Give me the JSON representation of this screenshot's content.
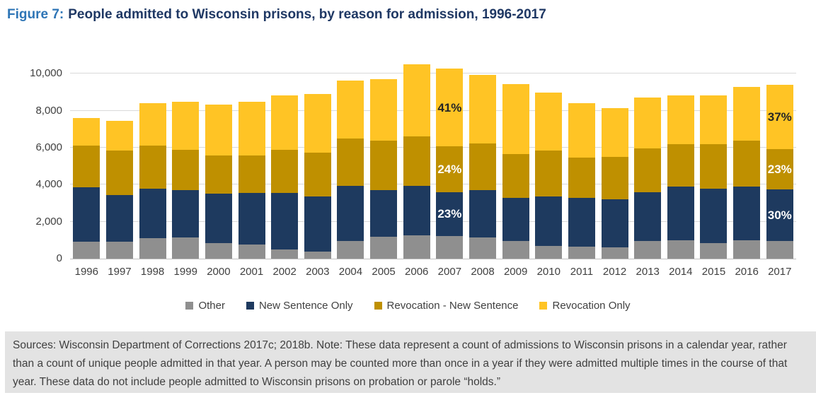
{
  "figure": {
    "label": "Figure 7:",
    "title": "People admitted to Wisconsin prisons, by reason for admission, 1996-2017"
  },
  "chart_data": {
    "type": "bar",
    "stacked": true,
    "title": "People admitted to Wisconsin prisons, by reason for admission, 1996-2017",
    "xlabel": "",
    "ylabel": "",
    "ylim": [
      0,
      10000
    ],
    "yticks": [
      0,
      2000,
      4000,
      6000,
      8000,
      10000
    ],
    "grid": true,
    "legend_position": "bottom",
    "categories": [
      "1996",
      "1997",
      "1998",
      "1999",
      "2000",
      "2001",
      "2002",
      "2003",
      "2004",
      "2005",
      "2006",
      "2007",
      "2008",
      "2009",
      "2010",
      "2011",
      "2012",
      "2013",
      "2014",
      "2015",
      "2016",
      "2017"
    ],
    "series": [
      {
        "name": "Other",
        "color": "#8F8F8F",
        "values": [
          900,
          900,
          1100,
          1150,
          850,
          750,
          500,
          400,
          950,
          1200,
          1250,
          1230,
          1150,
          950,
          700,
          650,
          600,
          950,
          1000,
          850,
          1000,
          940
        ]
      },
      {
        "name": "New Sentence Only",
        "color": "#1E3A5F",
        "values": [
          2950,
          2550,
          2700,
          2550,
          2650,
          2800,
          3050,
          2950,
          3000,
          2500,
          2700,
          2370,
          2550,
          2350,
          2650,
          2650,
          2600,
          2650,
          2900,
          2950,
          2900,
          2820
        ]
      },
      {
        "name": "Revocation - New Sentence",
        "color": "#BF9000",
        "values": [
          2250,
          2400,
          2300,
          2200,
          2100,
          2050,
          2350,
          2400,
          2550,
          2700,
          2650,
          2460,
          2550,
          2350,
          2500,
          2150,
          2300,
          2350,
          2300,
          2400,
          2500,
          2160
        ]
      },
      {
        "name": "Revocation Only",
        "color": "#FFC425",
        "values": [
          1500,
          1600,
          2300,
          2600,
          2750,
          2900,
          2950,
          3150,
          3150,
          3300,
          3900,
          4210,
          3700,
          3800,
          3150,
          2950,
          2650,
          2750,
          2650,
          2650,
          2900,
          3480
        ]
      }
    ],
    "bar_labels": [
      {
        "category": "2007",
        "series": "Revocation Only",
        "text": "41%",
        "text_color": "#262626"
      },
      {
        "category": "2007",
        "series": "Revocation - New Sentence",
        "text": "24%",
        "text_color": "#FFFFFF"
      },
      {
        "category": "2007",
        "series": "New Sentence Only",
        "text": "23%",
        "text_color": "#FFFFFF"
      },
      {
        "category": "2017",
        "series": "Revocation Only",
        "text": "37%",
        "text_color": "#262626"
      },
      {
        "category": "2017",
        "series": "Revocation - New Sentence",
        "text": "23%",
        "text_color": "#FFFFFF"
      },
      {
        "category": "2017",
        "series": "New Sentence Only",
        "text": "30%",
        "text_color": "#FFFFFF"
      }
    ]
  },
  "source_note": "Sources: Wisconsin Department of Corrections 2017c; 2018b. Note: These data represent a count of admissions to Wisconsin prisons in a calendar year, rather than a count of unique people admitted in that year. A person may be counted more than once in a year if they were admitted multiple times in the course of that year. These data do not include people admitted to Wisconsin prisons on probation or parole “holds.”"
}
